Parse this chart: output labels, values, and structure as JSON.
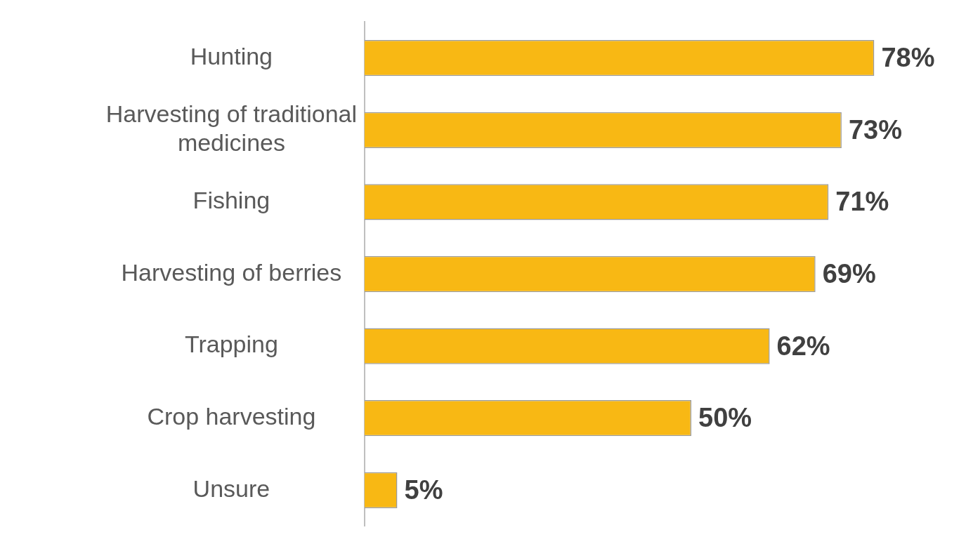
{
  "chart_data": {
    "type": "bar",
    "orientation": "horizontal",
    "categories": [
      "Hunting",
      "Harvesting of traditional medicines",
      "Fishing",
      "Harvesting of berries",
      "Trapping",
      "Crop harvesting",
      "Unsure"
    ],
    "values": [
      78,
      73,
      71,
      69,
      62,
      50,
      5
    ],
    "value_labels": [
      "78%",
      "73%",
      "71%",
      "69%",
      "62%",
      "50%",
      "5%"
    ],
    "color": "#f8b814",
    "tick_labels": "y",
    "legend": false
  }
}
